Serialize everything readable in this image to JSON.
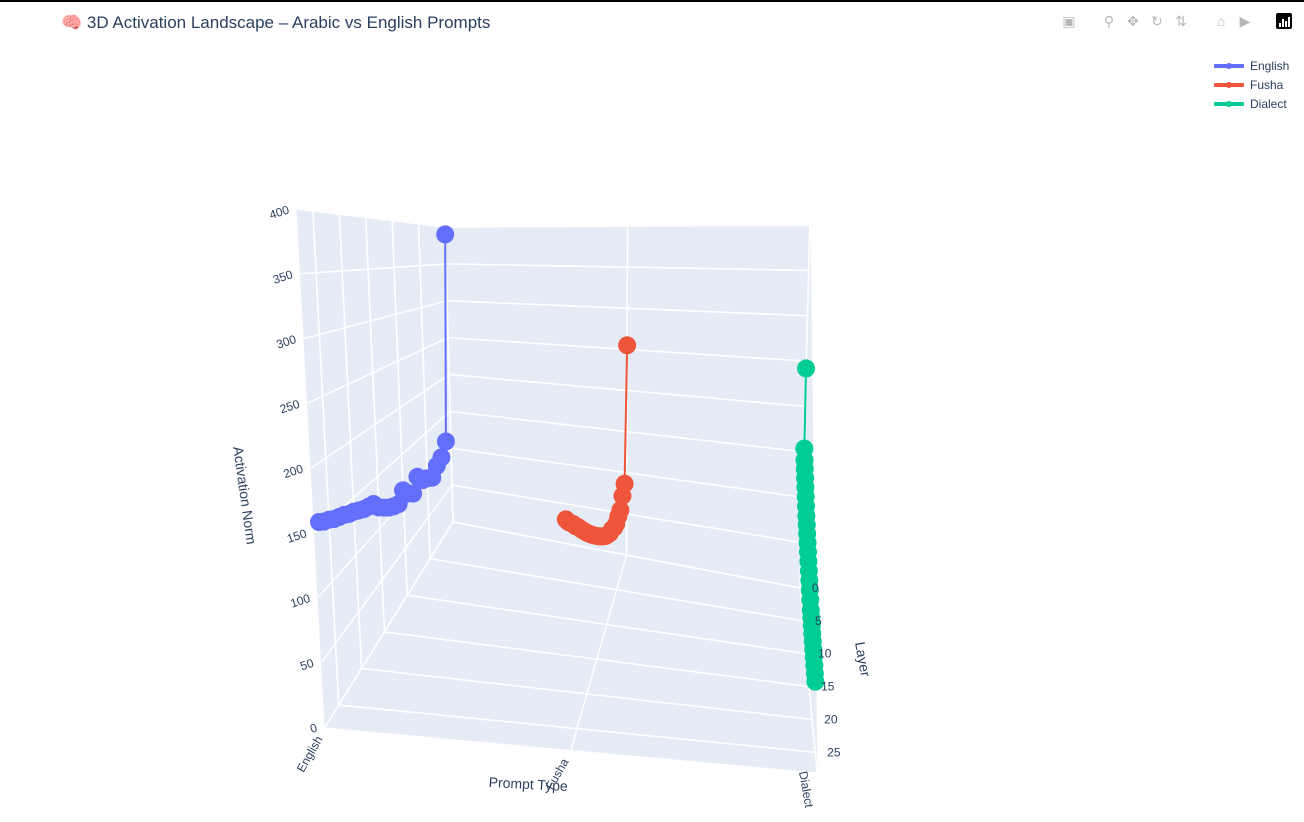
{
  "header": {
    "title": "🧠 3D Activation Landscape – Arabic vs English Prompts"
  },
  "modebar": {
    "buttons": [
      {
        "name": "camera-icon",
        "glyph": "📷"
      },
      {
        "name": "zoom-icon",
        "glyph": "🔍"
      },
      {
        "name": "pan-icon",
        "glyph": "✥"
      },
      {
        "name": "orbit-rotation-icon",
        "glyph": "↻"
      },
      {
        "name": "turntable-rotation-icon",
        "glyph": "⚲"
      },
      {
        "name": "reset-camera-icon",
        "glyph": "⌂"
      },
      {
        "name": "last-camera-icon",
        "glyph": "🎥"
      }
    ],
    "logo": "plotly-logo"
  },
  "chart_data": {
    "type": "scatter3d",
    "mode": "lines+markers",
    "title": "🧠 3D Activation Landscape – Arabic vs English Prompts",
    "axes": {
      "x": {
        "label": "Prompt Type",
        "categories": [
          "English",
          "Fusha",
          "Dialect"
        ]
      },
      "y": {
        "label": "Layer",
        "ticks": [
          0,
          5,
          10,
          15,
          20,
          25
        ],
        "range": [
          0,
          28
        ]
      },
      "z": {
        "label": "Activation Norm",
        "ticks": [
          0,
          50,
          100,
          150,
          200,
          250,
          300,
          350,
          400
        ],
        "range": [
          0,
          400
        ]
      }
    },
    "grid": true,
    "legend_position": "top-right",
    "series": [
      {
        "name": "English",
        "color": "#636efa",
        "x": "English",
        "layers": [
          0,
          1,
          2,
          3,
          4,
          5,
          6,
          7,
          8,
          9,
          10,
          11,
          12,
          13,
          14,
          15,
          16,
          17,
          18,
          19,
          20,
          21,
          22,
          23,
          24,
          25,
          26,
          27
        ],
        "values": [
          390,
          116,
          102,
          98,
          90,
          96,
          100,
          110,
          97,
          103,
          112,
          103,
          106,
          110,
          115,
          120,
          128,
          130,
          132,
          135,
          138,
          140,
          143,
          145,
          147,
          150,
          152,
          155
        ]
      },
      {
        "name": "Fusha",
        "color": "#ef553b",
        "x": "Fusha",
        "layers": [
          0,
          1,
          2,
          3,
          4,
          5,
          6,
          7,
          8,
          9,
          10,
          11,
          12,
          13,
          14,
          15,
          16,
          17,
          18,
          19,
          20,
          21,
          22,
          23,
          24,
          25,
          26,
          27
        ],
        "values": [
          255,
          93,
          85,
          75,
          74,
          72,
          74,
          78,
          80,
          84,
          88,
          93,
          98,
          103,
          108,
          113,
          118,
          123,
          128,
          133,
          138,
          143,
          148,
          152,
          157,
          161,
          165,
          170
        ]
      },
      {
        "name": "Dialect",
        "color": "#00cc96",
        "x": "Dialect",
        "layers": [
          0,
          1,
          2,
          3,
          4,
          5,
          6,
          7,
          8,
          9,
          10,
          11,
          12,
          13,
          14,
          15,
          16,
          17,
          18,
          19,
          20,
          21,
          22,
          23,
          24,
          25,
          26,
          27
        ],
        "values": [
          242,
          158,
          150,
          145,
          140,
          135,
          130,
          125,
          120,
          116,
          112,
          108,
          104,
          100,
          96,
          92,
          88,
          84,
          80,
          78,
          76,
          74,
          72,
          70,
          68,
          66,
          64,
          62
        ]
      }
    ]
  }
}
